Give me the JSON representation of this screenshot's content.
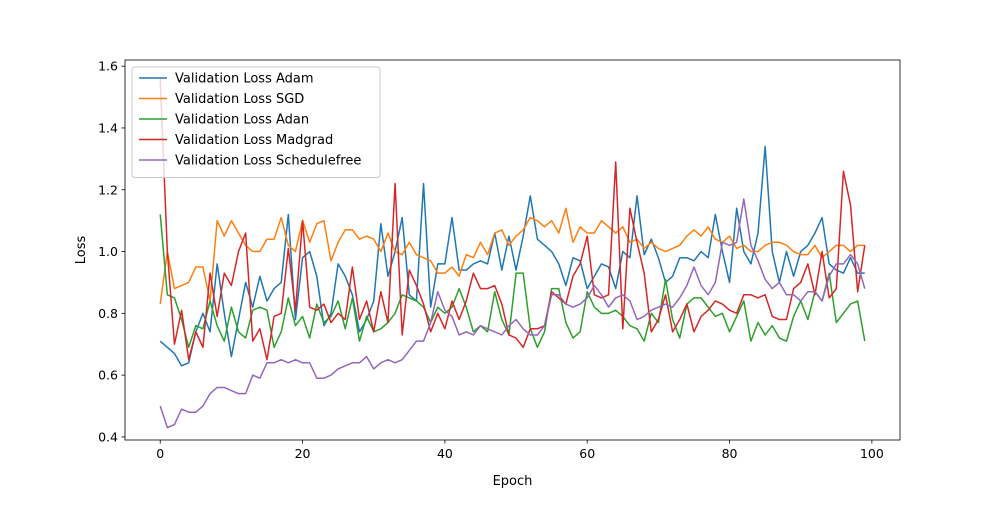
{
  "chart_data": {
    "type": "line",
    "title": "",
    "xlabel": "Epoch",
    "ylabel": "Loss",
    "xlim": [
      -4.95,
      103.95
    ],
    "ylim": [
      0.39,
      1.62
    ],
    "xticks": [
      0,
      20,
      40,
      60,
      80,
      100
    ],
    "xtick_labels": [
      "0",
      "20",
      "40",
      "60",
      "80",
      "100"
    ],
    "yticks": [
      0.4,
      0.6,
      0.8,
      1.0,
      1.2,
      1.4,
      1.6
    ],
    "ytick_labels": [
      "0.4",
      "0.6",
      "0.8",
      "1.0",
      "1.2",
      "1.4",
      "1.6"
    ],
    "grid": false,
    "legend_position": "top-left",
    "x": [
      0,
      1,
      2,
      3,
      4,
      5,
      6,
      7,
      8,
      9,
      10,
      11,
      12,
      13,
      14,
      15,
      16,
      17,
      18,
      19,
      20,
      21,
      22,
      23,
      24,
      25,
      26,
      27,
      28,
      29,
      30,
      31,
      32,
      33,
      34,
      35,
      36,
      37,
      38,
      39,
      40,
      41,
      42,
      43,
      44,
      45,
      46,
      47,
      48,
      49,
      50,
      51,
      52,
      53,
      54,
      55,
      56,
      57,
      58,
      59,
      60,
      61,
      62,
      63,
      64,
      65,
      66,
      67,
      68,
      69,
      70,
      71,
      72,
      73,
      74,
      75,
      76,
      77,
      78,
      79,
      80,
      81,
      82,
      83,
      84,
      85,
      86,
      87,
      88,
      89,
      90,
      91,
      92,
      93,
      94,
      95,
      96,
      97,
      98,
      99
    ],
    "series": [
      {
        "name": "Validation Loss Adam",
        "color": "#1f77b4",
        "values": [
          0.71,
          0.69,
          0.67,
          0.63,
          0.64,
          0.74,
          0.8,
          0.74,
          0.96,
          0.8,
          0.66,
          0.78,
          0.9,
          0.82,
          0.92,
          0.84,
          0.88,
          0.9,
          1.12,
          0.78,
          0.98,
          1.0,
          0.92,
          0.76,
          0.8,
          0.96,
          0.92,
          0.86,
          0.74,
          0.78,
          0.84,
          1.09,
          0.92,
          1.0,
          1.11,
          0.86,
          0.84,
          1.22,
          0.82,
          0.96,
          0.96,
          1.11,
          0.94,
          0.94,
          0.96,
          0.97,
          0.96,
          1.06,
          0.94,
          1.05,
          0.94,
          1.05,
          1.18,
          1.04,
          1.02,
          1.0,
          0.96,
          0.89,
          0.98,
          0.97,
          0.88,
          0.92,
          0.96,
          0.95,
          0.88,
          1.0,
          0.98,
          1.18,
          0.99,
          1.04,
          0.98,
          0.9,
          0.92,
          0.98,
          0.98,
          0.97,
          1.0,
          0.98,
          1.12,
          1.0,
          0.9,
          1.14,
          1.0,
          0.96,
          1.06,
          1.34,
          1.0,
          0.9,
          1.0,
          0.92,
          1.0,
          1.02,
          1.06,
          1.11,
          0.96,
          0.94,
          0.93,
          0.98,
          0.93,
          0.93
        ]
      },
      {
        "name": "Validation Loss SGD",
        "color": "#ff7f0e",
        "values": [
          0.83,
          1.0,
          0.88,
          0.89,
          0.9,
          0.95,
          0.95,
          0.84,
          1.1,
          1.05,
          1.1,
          1.06,
          1.02,
          1.0,
          1.0,
          1.04,
          1.04,
          1.11,
          1.02,
          1.0,
          1.1,
          1.03,
          1.09,
          1.1,
          0.97,
          1.03,
          1.07,
          1.07,
          1.04,
          1.05,
          1.04,
          1.0,
          1.06,
          1.0,
          0.99,
          1.03,
          0.99,
          0.98,
          0.97,
          0.93,
          0.93,
          0.95,
          0.92,
          0.99,
          0.98,
          1.03,
          0.99,
          1.06,
          1.07,
          1.02,
          1.05,
          1.07,
          1.11,
          1.1,
          1.08,
          1.1,
          1.06,
          1.14,
          1.03,
          1.08,
          1.06,
          1.06,
          1.1,
          1.08,
          1.06,
          1.08,
          1.03,
          1.04,
          1.01,
          1.03,
          1.01,
          1.0,
          1.01,
          1.02,
          1.05,
          1.07,
          1.05,
          1.08,
          1.04,
          1.03,
          1.05,
          1.01,
          1.02,
          1.0,
          1.0,
          1.02,
          1.03,
          1.03,
          1.02,
          1.0,
          0.99,
          0.99,
          1.02,
          0.98,
          1.0,
          1.02,
          1.02,
          1.0,
          1.02,
          1.02
        ]
      },
      {
        "name": "Validation Loss Adan",
        "color": "#2ca02c",
        "values": [
          1.12,
          0.86,
          0.85,
          0.78,
          0.69,
          0.76,
          0.75,
          0.84,
          0.76,
          0.71,
          0.82,
          0.74,
          0.72,
          0.81,
          0.82,
          0.81,
          0.69,
          0.74,
          0.85,
          0.76,
          0.79,
          0.72,
          0.83,
          0.77,
          0.79,
          0.84,
          0.75,
          0.85,
          0.71,
          0.79,
          0.74,
          0.75,
          0.77,
          0.8,
          0.86,
          0.85,
          0.84,
          0.82,
          0.77,
          0.82,
          0.8,
          0.82,
          0.88,
          0.82,
          0.74,
          0.76,
          0.74,
          0.87,
          0.78,
          0.73,
          0.93,
          0.93,
          0.75,
          0.69,
          0.74,
          0.88,
          0.88,
          0.77,
          0.72,
          0.74,
          0.87,
          0.82,
          0.8,
          0.8,
          0.81,
          0.79,
          0.76,
          0.75,
          0.71,
          0.8,
          0.77,
          0.91,
          0.78,
          0.72,
          0.83,
          0.85,
          0.85,
          0.82,
          0.79,
          0.8,
          0.74,
          0.79,
          0.84,
          0.71,
          0.77,
          0.73,
          0.76,
          0.72,
          0.71,
          0.79,
          0.84,
          0.78,
          0.87,
          0.84,
          0.93,
          0.77,
          0.8,
          0.83,
          0.84,
          0.71
        ]
      },
      {
        "name": "Validation Loss Madgrad",
        "color": "#d62728",
        "values": [
          1.56,
          1.0,
          0.7,
          0.81,
          0.65,
          0.74,
          0.69,
          0.93,
          0.79,
          0.93,
          0.89,
          1.0,
          1.06,
          0.71,
          0.75,
          0.65,
          0.79,
          0.8,
          1.01,
          0.81,
          1.1,
          0.82,
          0.81,
          0.83,
          0.77,
          0.8,
          0.78,
          0.95,
          0.78,
          0.84,
          0.74,
          0.87,
          0.77,
          1.22,
          0.73,
          0.94,
          0.89,
          0.83,
          0.74,
          0.8,
          0.75,
          0.84,
          0.78,
          0.84,
          0.93,
          0.88,
          0.88,
          0.89,
          0.83,
          0.73,
          0.72,
          0.69,
          0.75,
          0.75,
          0.76,
          0.87,
          0.85,
          0.83,
          0.92,
          0.96,
          1.05,
          0.86,
          0.85,
          0.86,
          1.29,
          0.75,
          1.14,
          1.03,
          0.93,
          0.74,
          0.78,
          0.86,
          0.74,
          0.78,
          0.83,
          0.74,
          0.79,
          0.81,
          0.84,
          0.83,
          0.81,
          0.8,
          0.86,
          0.86,
          0.85,
          0.86,
          0.79,
          0.78,
          0.78,
          0.88,
          0.9,
          0.96,
          0.86,
          1.0,
          0.85,
          0.88,
          1.26,
          1.15,
          0.87,
          1.02
        ]
      },
      {
        "name": "Validation Loss Schedulefree",
        "color": "#9467bd",
        "values": [
          0.5,
          0.43,
          0.44,
          0.49,
          0.48,
          0.48,
          0.5,
          0.54,
          0.56,
          0.56,
          0.55,
          0.54,
          0.54,
          0.6,
          0.59,
          0.64,
          0.64,
          0.65,
          0.64,
          0.65,
          0.64,
          0.64,
          0.59,
          0.59,
          0.6,
          0.62,
          0.63,
          0.64,
          0.64,
          0.66,
          0.62,
          0.64,
          0.65,
          0.64,
          0.65,
          0.68,
          0.71,
          0.71,
          0.77,
          0.87,
          0.81,
          0.79,
          0.73,
          0.74,
          0.73,
          0.76,
          0.75,
          0.74,
          0.73,
          0.76,
          0.78,
          0.75,
          0.73,
          0.73,
          0.76,
          0.86,
          0.86,
          0.83,
          0.82,
          0.83,
          0.85,
          0.89,
          0.86,
          0.82,
          0.85,
          0.86,
          0.84,
          0.78,
          0.79,
          0.81,
          0.82,
          0.83,
          0.82,
          0.85,
          0.89,
          0.95,
          0.89,
          0.86,
          0.9,
          1.03,
          1.02,
          1.03,
          1.17,
          1.02,
          0.97,
          0.91,
          0.88,
          0.9,
          0.86,
          0.86,
          0.84,
          0.87,
          0.87,
          0.84,
          0.92,
          0.96,
          0.96,
          0.99,
          0.96,
          0.88
        ]
      }
    ]
  }
}
